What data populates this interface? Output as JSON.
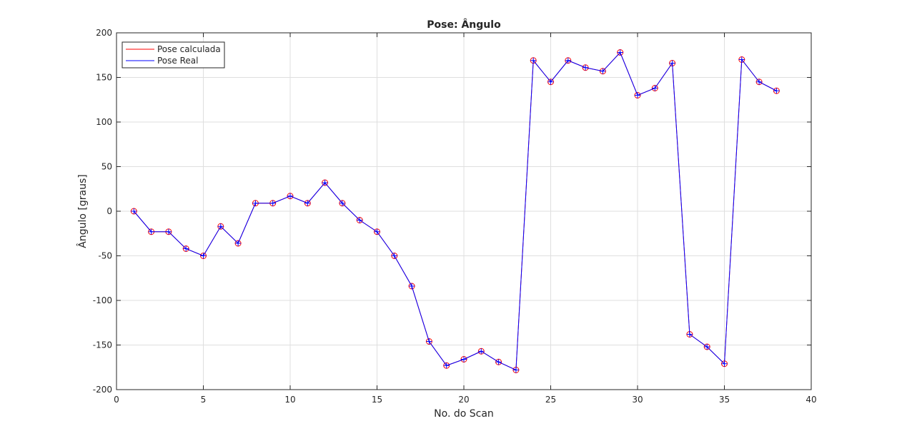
{
  "chart_data": {
    "type": "line",
    "title": "Pose: Ângulo",
    "xlabel": "No. do Scan",
    "ylabel": "Ângulo [graus]",
    "xlim": [
      0,
      40
    ],
    "ylim": [
      -200,
      200
    ],
    "xticks": [
      0,
      5,
      10,
      15,
      20,
      25,
      30,
      35,
      40
    ],
    "yticks": [
      -200,
      -150,
      -100,
      -50,
      0,
      50,
      100,
      150,
      200
    ],
    "grid": true,
    "legend_position": "top-left",
    "x": [
      1,
      2,
      3,
      4,
      5,
      6,
      7,
      8,
      9,
      10,
      11,
      12,
      13,
      14,
      15,
      16,
      17,
      18,
      19,
      20,
      21,
      22,
      23,
      24,
      25,
      26,
      27,
      28,
      29,
      30,
      31,
      32,
      33,
      34,
      35,
      36,
      37,
      38
    ],
    "series": [
      {
        "name": "Pose calculada",
        "color": "#ff0000",
        "marker": "circle",
        "values": [
          0,
          -23,
          -23,
          -42,
          -50,
          -17,
          -36,
          9,
          9,
          17,
          9,
          32,
          9,
          -10,
          -23,
          -50,
          -84,
          -146,
          -173,
          -166,
          -157,
          -169,
          -178,
          169,
          145,
          169,
          161,
          157,
          178,
          130,
          138,
          166,
          -138,
          -152,
          -171,
          170,
          145,
          135
        ]
      },
      {
        "name": "Pose Real",
        "color": "#0000ff",
        "marker": "plus",
        "values": [
          0,
          -23,
          -23,
          -42,
          -50,
          -17,
          -36,
          9,
          9,
          17,
          9,
          32,
          9,
          -10,
          -23,
          -50,
          -84,
          -146,
          -173,
          -166,
          -157,
          -169,
          -178,
          169,
          145,
          169,
          161,
          157,
          178,
          130,
          138,
          166,
          -138,
          -152,
          -171,
          170,
          145,
          135
        ]
      }
    ]
  }
}
